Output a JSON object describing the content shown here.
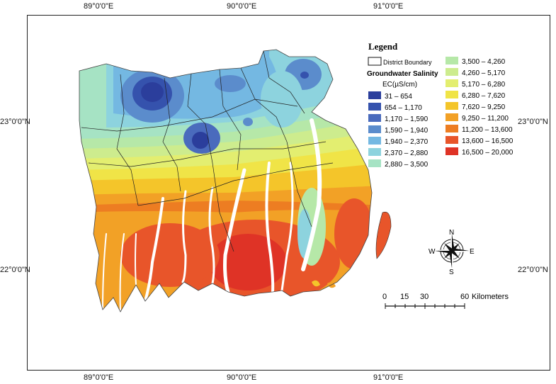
{
  "axes": {
    "top_labels": [
      "89°0'0\"E",
      "90°0'0\"E",
      "91°0'0\"E"
    ],
    "bottom_labels": [
      "89°0'0\"E",
      "90°0'0\"E",
      "91°0'0\"E"
    ],
    "left_labels": [
      "23°0'0\"N",
      "22°0'0\"N"
    ],
    "right_labels": [
      "23°0'0\"N",
      "22°0'0\"N"
    ]
  },
  "legend": {
    "title": "Legend",
    "boundary_label": "District Boundary",
    "subtitle": "Groundwater Salinity",
    "unit": "EC(µS/cm)",
    "classes": [
      {
        "label": "31 – 654",
        "color": "#2b3e9c"
      },
      {
        "label": "654 – 1,170",
        "color": "#3552ad"
      },
      {
        "label": "1,170 – 1,590",
        "color": "#4a6bbd"
      },
      {
        "label": "1,590 – 1,940",
        "color": "#5b8ccc"
      },
      {
        "label": "1,940 – 2,370",
        "color": "#74b8e2"
      },
      {
        "label": "2,370 – 2,880",
        "color": "#8dd3de"
      },
      {
        "label": "2,880 – 3,500",
        "color": "#a6e3c4"
      },
      {
        "label": "3,500 – 4,260",
        "color": "#b6e8a8"
      },
      {
        "label": "4,260 – 5,170",
        "color": "#cdec8e"
      },
      {
        "label": "5,170 – 6,280",
        "color": "#e3ee70"
      },
      {
        "label": "6,280 – 7,620",
        "color": "#f0e447"
      },
      {
        "label": "7,620 – 9,250",
        "color": "#f4c52a"
      },
      {
        "label": "9,250 – 11,200",
        "color": "#f2a126"
      },
      {
        "label": "11,200 – 13,600",
        "color": "#ed7d22"
      },
      {
        "label": "13,600 – 16,500",
        "color": "#e8552a"
      },
      {
        "label": "16,500 – 20,000",
        "color": "#df3326"
      }
    ]
  },
  "compass": {
    "n": "N",
    "s": "S",
    "e": "E",
    "w": "W"
  },
  "scalebar": {
    "ticks": [
      "0",
      "15",
      "30",
      "60"
    ],
    "unit": "Kilometers"
  }
}
